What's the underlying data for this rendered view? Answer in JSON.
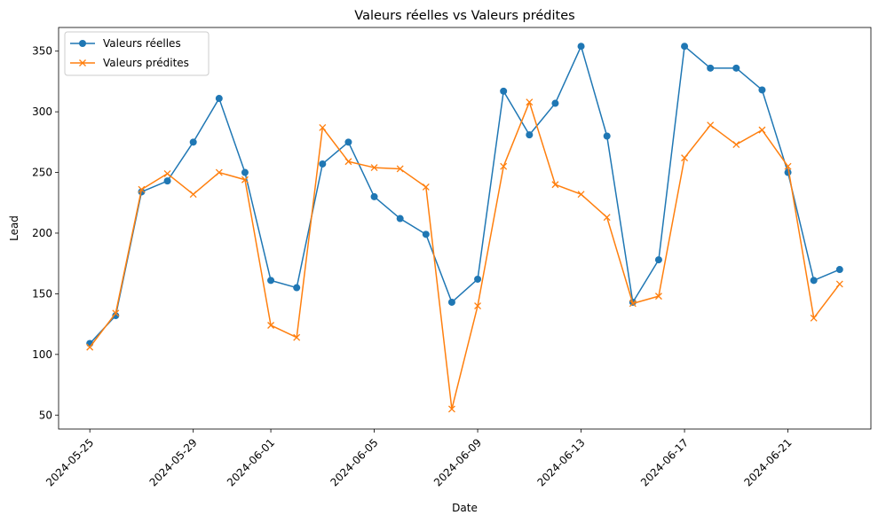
{
  "chart_data": {
    "type": "line",
    "title": "Valeurs réelles vs Valeurs prédites",
    "xlabel": "Date",
    "ylabel": "Lead",
    "x": [
      "2024-05-25",
      "2024-05-26",
      "2024-05-27",
      "2024-05-28",
      "2024-05-29",
      "2024-05-30",
      "2024-05-31",
      "2024-06-01",
      "2024-06-02",
      "2024-06-03",
      "2024-06-04",
      "2024-06-05",
      "2024-06-06",
      "2024-06-07",
      "2024-06-08",
      "2024-06-09",
      "2024-06-10",
      "2024-06-11",
      "2024-06-12",
      "2024-06-13",
      "2024-06-14",
      "2024-06-15",
      "2024-06-16",
      "2024-06-17",
      "2024-06-18",
      "2024-06-19",
      "2024-06-20",
      "2024-06-21",
      "2024-06-22",
      "2024-06-23"
    ],
    "xticks": [
      "2024-05-25",
      "2024-05-29",
      "2024-06-01",
      "2024-06-05",
      "2024-06-09",
      "2024-06-13",
      "2024-06-17",
      "2024-06-21"
    ],
    "xlim": [
      "2024-05-23T19:00",
      "2024-06-24T05:00"
    ],
    "yticks": [
      50,
      100,
      150,
      200,
      250,
      300,
      350
    ],
    "ylim": [
      38.5,
      369.5
    ],
    "legend_position": "upper-left",
    "grid": false,
    "series": [
      {
        "name": "Valeurs réelles",
        "color": "#1f77b4",
        "marker": "circle",
        "values": [
          109,
          132,
          234,
          243,
          275,
          311,
          250,
          161,
          155,
          257,
          275,
          230,
          212,
          199,
          143,
          162,
          317,
          281,
          307,
          354,
          280,
          143,
          178,
          354,
          336,
          336,
          318,
          250,
          161,
          170
        ]
      },
      {
        "name": "Valeurs prédites",
        "color": "#ff7f0e",
        "marker": "x",
        "values": [
          106,
          134,
          236,
          249,
          232,
          250,
          244,
          124,
          114,
          287,
          259,
          254,
          253,
          238,
          55,
          140,
          255,
          308,
          240,
          232,
          213,
          142,
          148,
          262,
          289,
          273,
          285,
          255,
          130,
          158
        ]
      }
    ]
  }
}
